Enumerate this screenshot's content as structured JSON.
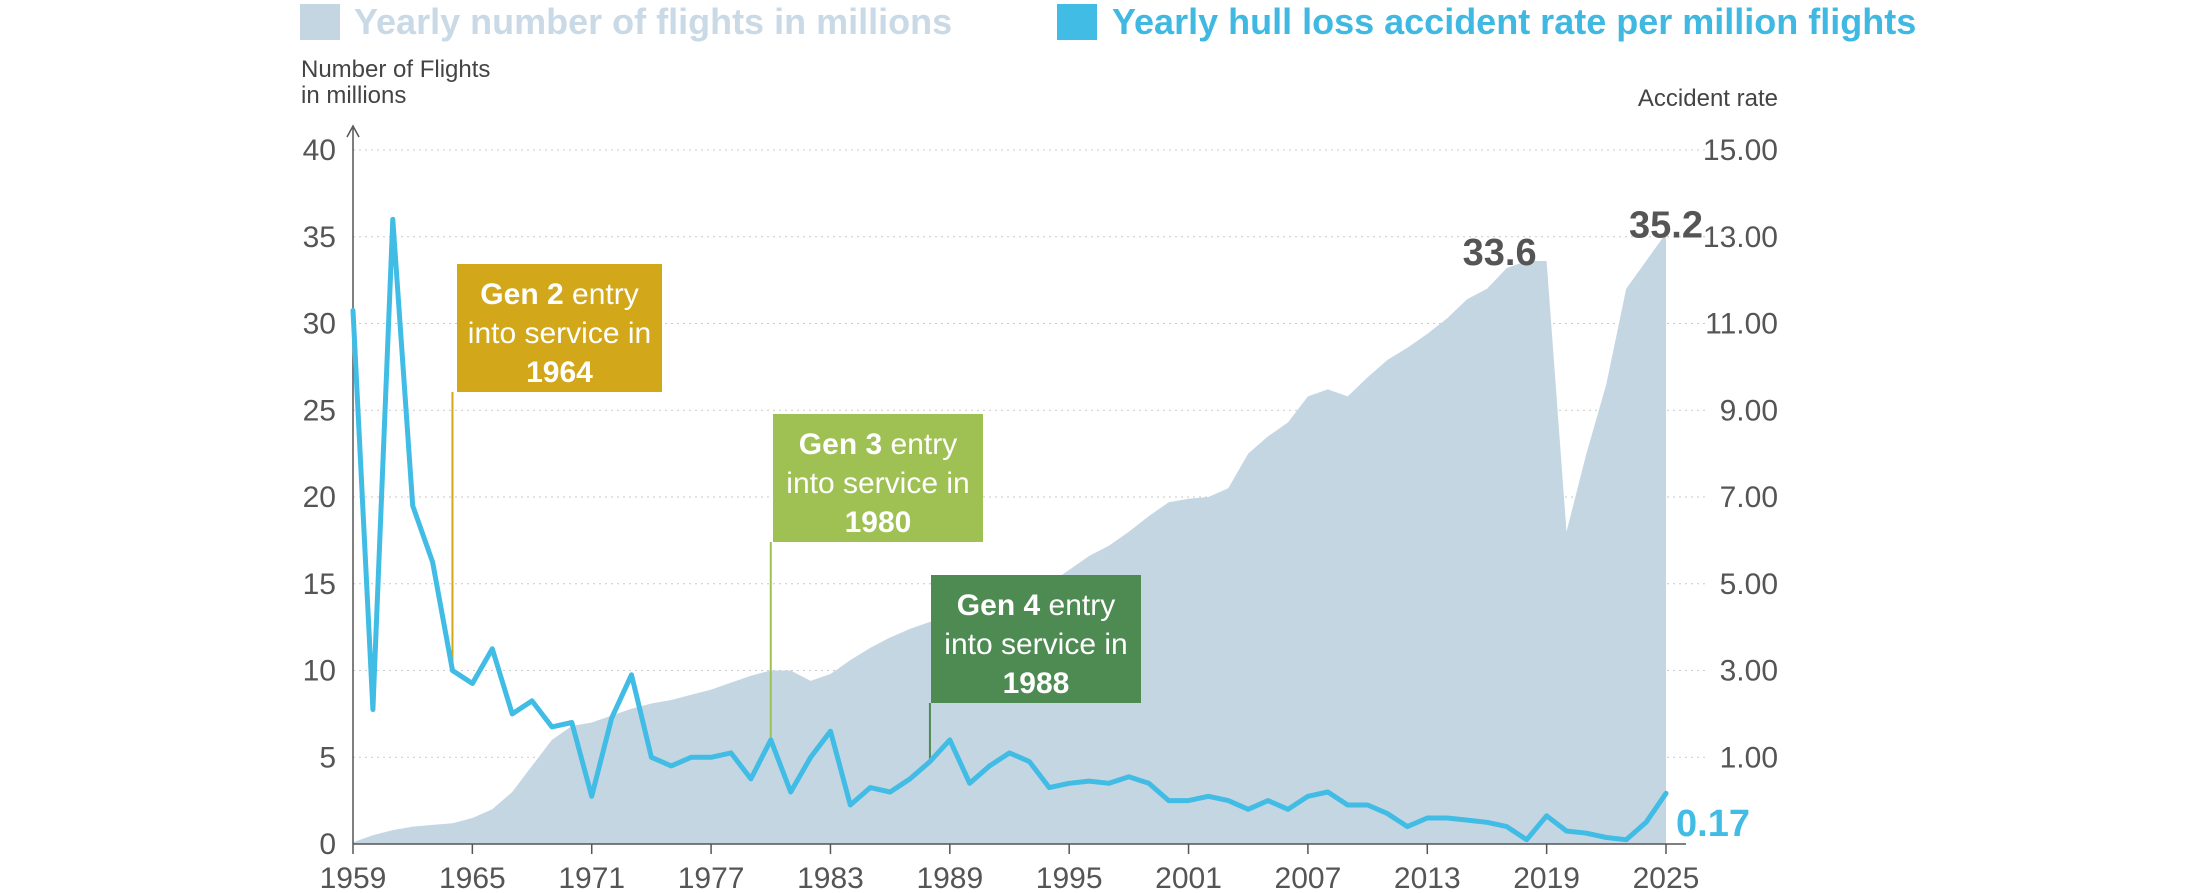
{
  "chart_data": {
    "type": "area+line",
    "legend": [
      {
        "label": "Yearly number of  flights in millions",
        "color": "#c5d6e3",
        "text_color": "#c9d9e5"
      },
      {
        "label": "Yearly hull loss accident rate per million flights",
        "color": "#41bce5",
        "text_color": "#3fb8e2"
      }
    ],
    "left_axis": {
      "title_lines": [
        "Number of Flights",
        "in millions"
      ],
      "ticks": [
        "0",
        "5",
        "10",
        "15",
        "20",
        "25",
        "30",
        "35",
        "40"
      ],
      "range": [
        0,
        40
      ]
    },
    "right_axis": {
      "title": "Accident rate",
      "ticks": [
        "1.00",
        "3.00",
        "5.00",
        "7.00",
        "9.00",
        "11.00",
        "13.00",
        "15.00"
      ],
      "range": [
        -1,
        15
      ]
    },
    "x_axis": {
      "ticks": [
        "1959",
        "1965",
        "1971",
        "1977",
        "1983",
        "1989",
        "1995",
        "2001",
        "2007",
        "2013",
        "2019",
        "2025"
      ],
      "range": [
        1959,
        2025
      ]
    },
    "series": [
      {
        "name": "Yearly number of  flights in millions",
        "axis": "left",
        "color": "#c5d6e3",
        "x": [
          1959,
          1960,
          1961,
          1962,
          1963,
          1964,
          1965,
          1966,
          1967,
          1968,
          1969,
          1970,
          1971,
          1972,
          1973,
          1974,
          1975,
          1976,
          1977,
          1978,
          1979,
          1980,
          1981,
          1982,
          1983,
          1984,
          1985,
          1986,
          1987,
          1988,
          1989,
          1990,
          1991,
          1992,
          1993,
          1994,
          1995,
          1996,
          1997,
          1998,
          1999,
          2000,
          2001,
          2002,
          2003,
          2004,
          2005,
          2006,
          2007,
          2008,
          2009,
          2010,
          2011,
          2012,
          2013,
          2014,
          2015,
          2016,
          2017,
          2018,
          2019,
          2020,
          2021,
          2022,
          2023,
          2024,
          2025
        ],
        "values": [
          0.1,
          0.5,
          0.8,
          1.0,
          1.1,
          1.2,
          1.5,
          2.0,
          3.0,
          4.5,
          6.0,
          6.8,
          7.0,
          7.4,
          7.8,
          8.1,
          8.3,
          8.6,
          8.9,
          9.3,
          9.7,
          10.0,
          10.0,
          9.4,
          9.8,
          10.6,
          11.3,
          11.9,
          12.4,
          12.8,
          13.1,
          13.4,
          13.5,
          14.0,
          14.5,
          15.0,
          15.8,
          16.6,
          17.2,
          18.0,
          18.9,
          19.7,
          19.9,
          20.0,
          20.5,
          22.5,
          23.5,
          24.3,
          25.8,
          26.2,
          25.8,
          26.9,
          27.9,
          28.6,
          29.4,
          30.3,
          31.4,
          32.0,
          33.2,
          33.6,
          33.6,
          18.0,
          22.5,
          26.5,
          32.0,
          33.6,
          35.2
        ]
      },
      {
        "name": "Yearly hull loss accident rate per million flights",
        "axis": "right",
        "color": "#41bce5",
        "x": [
          1959,
          1960,
          1961,
          1962,
          1963,
          1964,
          1965,
          1966,
          1967,
          1968,
          1969,
          1970,
          1971,
          1972,
          1973,
          1974,
          1975,
          1976,
          1977,
          1978,
          1979,
          1980,
          1981,
          1982,
          1983,
          1984,
          1985,
          1986,
          1987,
          1988,
          1989,
          1990,
          1991,
          1992,
          1993,
          1994,
          1995,
          1996,
          1997,
          1998,
          1999,
          2000,
          2001,
          2002,
          2003,
          2004,
          2005,
          2006,
          2007,
          2008,
          2009,
          2010,
          2011,
          2012,
          2013,
          2014,
          2015,
          2016,
          2017,
          2018,
          2019,
          2020,
          2021,
          2022,
          2023,
          2024,
          2025
        ],
        "values": [
          11.3,
          2.1,
          13.4,
          6.8,
          5.5,
          3.0,
          2.7,
          3.5,
          2.0,
          2.3,
          1.7,
          1.8,
          0.1,
          1.9,
          2.9,
          1.0,
          0.8,
          1.0,
          1.0,
          1.1,
          0.5,
          1.4,
          0.2,
          1.0,
          1.6,
          -0.1,
          0.3,
          0.2,
          0.5,
          0.9,
          1.4,
          0.4,
          0.8,
          1.1,
          0.9,
          0.3,
          0.4,
          0.45,
          0.4,
          0.55,
          0.4,
          0.0,
          0.0,
          0.1,
          0.0,
          -0.2,
          0.0,
          -0.2,
          0.1,
          0.2,
          -0.1,
          -0.1,
          -0.3,
          -0.6,
          -0.4,
          -0.4,
          -0.45,
          -0.5,
          -0.6,
          -0.9,
          -0.35,
          -0.7,
          -0.75,
          -0.85,
          -0.9,
          -0.5,
          0.17
        ]
      }
    ],
    "annotations": [
      {
        "text": "33.6",
        "x": 2019,
        "y": 33.6,
        "axis": "left"
      },
      {
        "text": "35.2",
        "x": 2025,
        "y": 35.2,
        "axis": "left"
      },
      {
        "text": "0.17",
        "x": 2025,
        "y": 0.17,
        "axis": "right"
      }
    ],
    "callouts": [
      {
        "bold": "Gen 2",
        "rest": " entry",
        "line2": "into service in",
        "year": "1964",
        "x": 1964,
        "color": "#d3a71a"
      },
      {
        "bold": "Gen 3",
        "rest": " entry",
        "line2": "into service in",
        "year": "1980",
        "x": 1980,
        "color": "#9fc153"
      },
      {
        "bold": "Gen 4",
        "rest": " entry",
        "line2": "into service in",
        "year": "1988",
        "x": 1988,
        "color": "#4e8b52"
      }
    ],
    "grid": "horizontal dotted"
  }
}
